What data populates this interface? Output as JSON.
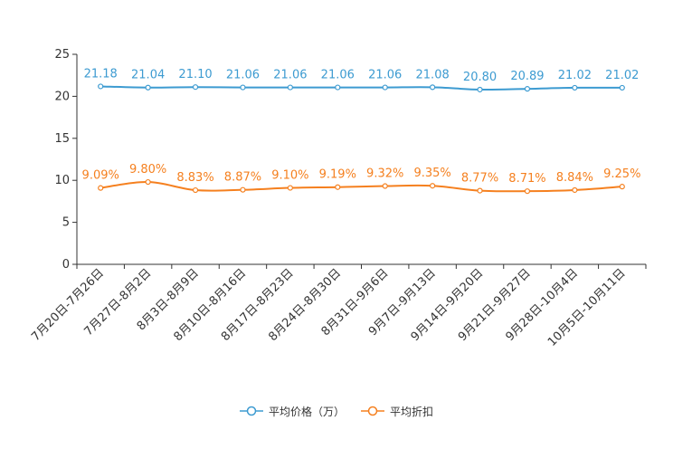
{
  "chart_data": {
    "type": "line",
    "title": "",
    "xlabel": "",
    "ylabel": "",
    "ylim": [
      0,
      25
    ],
    "yticks": [
      0,
      5,
      10,
      15,
      20,
      25
    ],
    "grid": false,
    "legend_position": "bottom-center",
    "categories": [
      "7月20日-7月26日",
      "7月27日-8月2日",
      "8月3日-8月9日",
      "8月10日-8月16日",
      "8月17日-8月23日",
      "8月24日-8月30日",
      "8月31日-9月6日",
      "9月7日-9月13日",
      "9月14日-9月20日",
      "9月21日-9月27日",
      "9月28日-10月4日",
      "10月5日-10月11日"
    ],
    "series": [
      {
        "name": "平均价格（万）",
        "color": "#3d9bd1",
        "values": [
          21.18,
          21.04,
          21.1,
          21.06,
          21.06,
          21.06,
          21.06,
          21.08,
          20.8,
          20.89,
          21.02,
          21.02
        ],
        "labels": [
          "21.18",
          "21.04",
          "21.10",
          "21.06",
          "21.06",
          "21.06",
          "21.06",
          "21.08",
          "20.80",
          "20.89",
          "21.02",
          "21.02"
        ]
      },
      {
        "name": "平均折扣",
        "color": "#f5801f",
        "values": [
          9.09,
          9.8,
          8.83,
          8.87,
          9.1,
          9.19,
          9.32,
          9.35,
          8.77,
          8.71,
          8.84,
          9.25
        ],
        "labels": [
          "9.09%",
          "9.80%",
          "8.83%",
          "8.87%",
          "9.10%",
          "9.19%",
          "9.32%",
          "9.35%",
          "8.77%",
          "8.71%",
          "8.84%",
          "9.25%"
        ]
      }
    ]
  }
}
